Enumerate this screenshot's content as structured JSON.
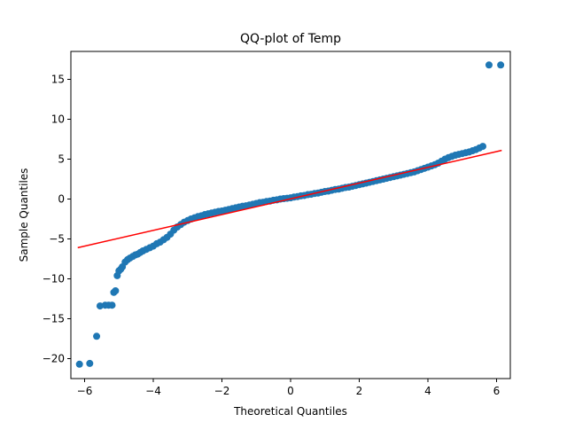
{
  "chart_data": {
    "type": "scatter",
    "title": "QQ-plot of Temp",
    "xlabel": "Theoretical Quantiles",
    "ylabel": "Sample Quantiles",
    "xlim": [
      -6.4,
      6.4
    ],
    "ylim": [
      -22.5,
      18.5
    ],
    "xticks": [
      -6,
      -4,
      -2,
      0,
      2,
      4,
      6
    ],
    "yticks": [
      -20,
      -15,
      -10,
      -5,
      0,
      5,
      10,
      15
    ],
    "grid": false,
    "point_color": "#1f77b4",
    "line_color": "#ff0000",
    "reference_line": {
      "x": [
        -6.2,
        6.15
      ],
      "y": [
        -6.1,
        6.1
      ]
    },
    "points": {
      "x": [
        -6.15,
        -5.85,
        -5.65,
        -5.55,
        -5.4,
        -5.3,
        -5.2,
        -5.15,
        -5.1,
        -5.05,
        -5.0,
        -4.95,
        -4.9,
        -4.82,
        -4.75,
        -4.68,
        -4.6,
        -4.52,
        -4.45,
        -4.38,
        -4.3,
        -4.2,
        -4.1,
        -4.0,
        -3.9,
        -3.8,
        -3.7,
        -3.6,
        -3.5,
        -3.4,
        -3.3,
        -3.2,
        -3.1,
        -3.0,
        -2.9,
        -2.8,
        -2.7,
        -2.6,
        -2.5,
        -2.4,
        -2.3,
        -2.2,
        -2.1,
        -2.0,
        -1.9,
        -1.8,
        -1.7,
        -1.6,
        -1.5,
        -1.4,
        -1.3,
        -1.2,
        -1.1,
        -1.0,
        -0.9,
        -0.8,
        -0.7,
        -0.6,
        -0.5,
        -0.4,
        -0.3,
        -0.2,
        -0.1,
        0.0,
        0.1,
        0.2,
        0.3,
        0.4,
        0.5,
        0.6,
        0.7,
        0.8,
        0.9,
        1.0,
        1.1,
        1.2,
        1.3,
        1.4,
        1.5,
        1.6,
        1.7,
        1.8,
        1.9,
        2.0,
        2.1,
        2.2,
        2.3,
        2.4,
        2.5,
        2.6,
        2.7,
        2.8,
        2.9,
        3.0,
        3.1,
        3.2,
        3.3,
        3.4,
        3.5,
        3.6,
        3.7,
        3.8,
        3.9,
        4.0,
        4.1,
        4.2,
        4.3,
        4.4,
        4.5,
        4.6,
        4.7,
        4.8,
        4.9,
        5.0,
        5.1,
        5.2,
        5.3,
        5.4,
        5.5,
        5.6,
        5.78,
        6.12
      ],
      "y": [
        -20.7,
        -20.6,
        -17.2,
        -13.4,
        -13.3,
        -13.3,
        -13.3,
        -11.7,
        -11.5,
        -9.6,
        -9.0,
        -8.8,
        -8.5,
        -7.9,
        -7.6,
        -7.4,
        -7.2,
        -7.0,
        -6.9,
        -6.7,
        -6.5,
        -6.3,
        -6.1,
        -5.9,
        -5.6,
        -5.4,
        -5.1,
        -4.8,
        -4.4,
        -3.9,
        -3.5,
        -3.2,
        -2.9,
        -2.7,
        -2.5,
        -2.35,
        -2.2,
        -2.1,
        -1.95,
        -1.85,
        -1.75,
        -1.65,
        -1.55,
        -1.5,
        -1.4,
        -1.3,
        -1.2,
        -1.1,
        -1.0,
        -0.9,
        -0.85,
        -0.75,
        -0.65,
        -0.55,
        -0.45,
        -0.4,
        -0.3,
        -0.25,
        -0.15,
        -0.1,
        0.0,
        0.05,
        0.1,
        0.15,
        0.25,
        0.3,
        0.4,
        0.45,
        0.55,
        0.6,
        0.7,
        0.75,
        0.85,
        0.95,
        1.0,
        1.1,
        1.2,
        1.25,
        1.35,
        1.45,
        1.5,
        1.6,
        1.7,
        1.8,
        1.9,
        2.0,
        2.1,
        2.2,
        2.3,
        2.4,
        2.5,
        2.6,
        2.7,
        2.8,
        2.9,
        3.0,
        3.1,
        3.2,
        3.3,
        3.4,
        3.55,
        3.7,
        3.85,
        4.0,
        4.15,
        4.3,
        4.5,
        4.75,
        5.0,
        5.2,
        5.35,
        5.5,
        5.6,
        5.7,
        5.8,
        5.9,
        6.05,
        6.2,
        6.4,
        6.6,
        16.8,
        16.8
      ]
    }
  }
}
